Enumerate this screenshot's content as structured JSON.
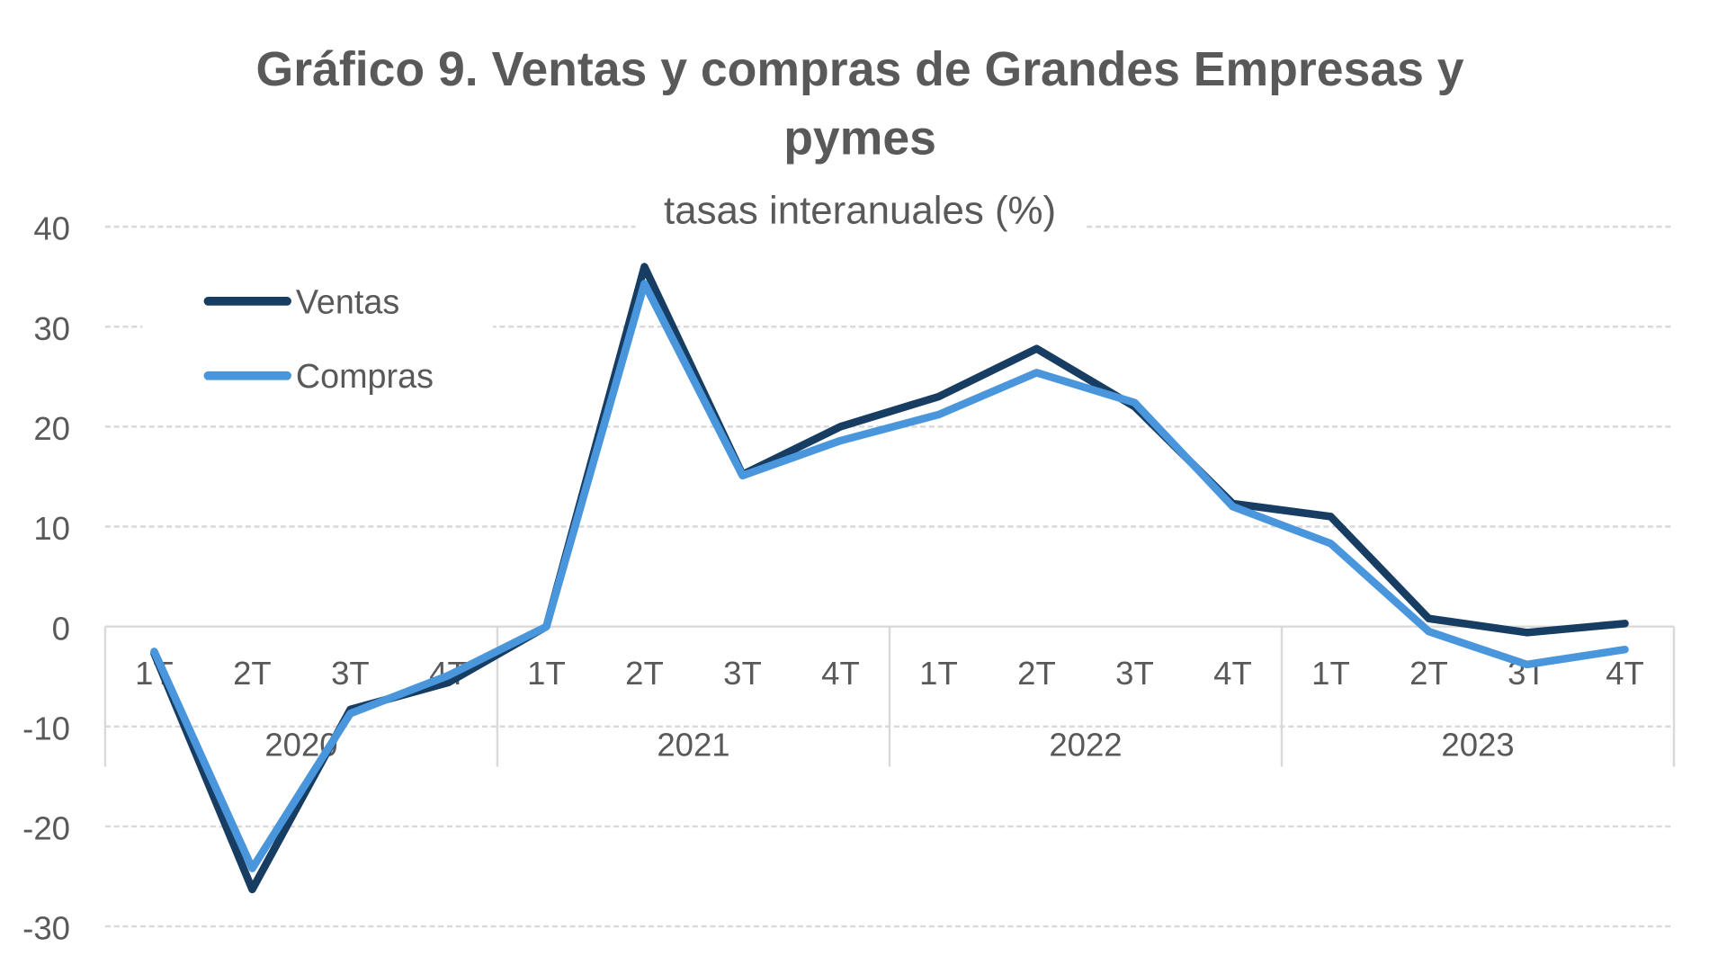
{
  "chart_data": {
    "type": "line",
    "title": "Gráfico 9. Ventas y compras de Grandes Empresas y pymes",
    "title_lines": [
      "Gráfico 9. Ventas y compras de Grandes Empresas y",
      "pymes"
    ],
    "subtitle": "tasas interanuales (%)",
    "categories": [
      "1T",
      "2T",
      "3T",
      "4T",
      "1T",
      "2T",
      "3T",
      "4T",
      "1T",
      "2T",
      "3T",
      "4T",
      "1T",
      "2T",
      "3T",
      "4T"
    ],
    "groups": [
      "2020",
      "2021",
      "2022",
      "2023"
    ],
    "ylim": [
      -30,
      40
    ],
    "yticks": [
      "-30",
      "-20",
      "-10",
      "0",
      "10",
      "20",
      "30",
      "40"
    ],
    "grid": true,
    "legend_position": "top-left",
    "series": [
      {
        "name": "Ventas",
        "color": "#173d63",
        "values": [
          -2.7,
          -26.3,
          -8.3,
          -5.6,
          0,
          36,
          15.2,
          20,
          23,
          27.8,
          22,
          12.3,
          11,
          0.8,
          -0.6,
          0.3
        ]
      },
      {
        "name": "Compras",
        "color": "#4a96dc",
        "values": [
          -2.5,
          -24.2,
          -8.7,
          -4.9,
          0,
          34.3,
          15.1,
          18.6,
          21.2,
          25.4,
          22.4,
          12,
          8.3,
          -0.5,
          -3.8,
          -2.3
        ]
      }
    ]
  }
}
